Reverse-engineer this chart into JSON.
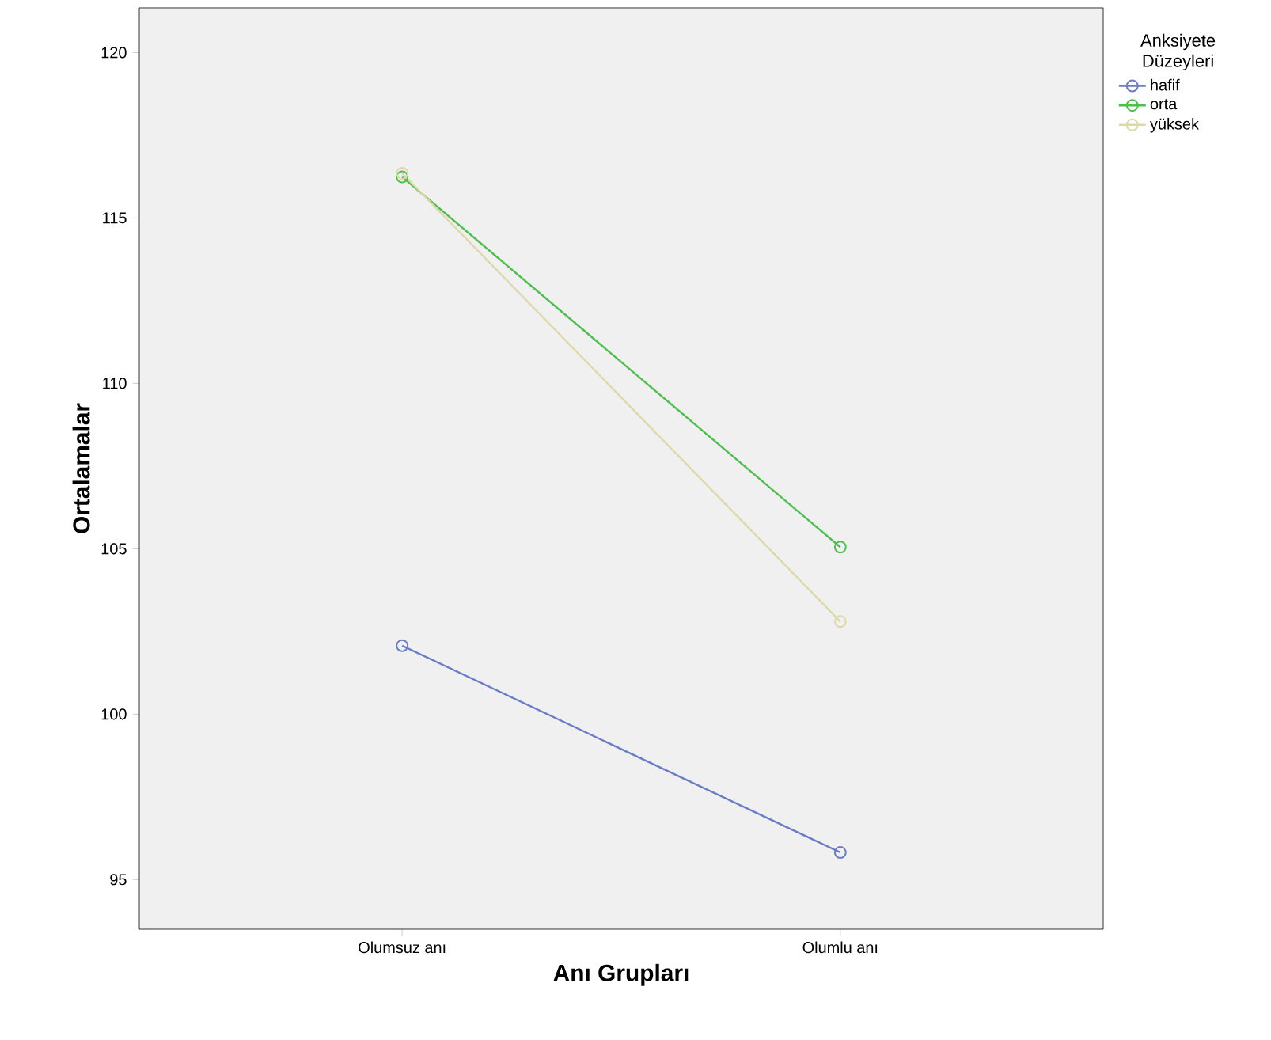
{
  "chart_data": {
    "type": "line",
    "xlabel": "Anı Grupları",
    "ylabel": "Ortalamalar",
    "legend_title": "Anksiyete Düzeyleri",
    "categories": [
      "Olumsuz anı",
      "Olumlu anı"
    ],
    "series": [
      {
        "name": "hafif",
        "color": "#6a7cc6",
        "values": [
          102.07,
          95.82
        ]
      },
      {
        "name": "orta",
        "color": "#4cbf4c",
        "values": [
          116.24,
          105.05
        ]
      },
      {
        "name": "yüksek",
        "color": "#ddd9a8",
        "values": [
          116.35,
          102.8
        ]
      }
    ],
    "ylim": [
      93.5,
      121.35
    ],
    "yticks": [
      95,
      100,
      105,
      110,
      115,
      120
    ],
    "marker": "circle",
    "line_style": "solid",
    "legend": "top right",
    "grid": false
  }
}
